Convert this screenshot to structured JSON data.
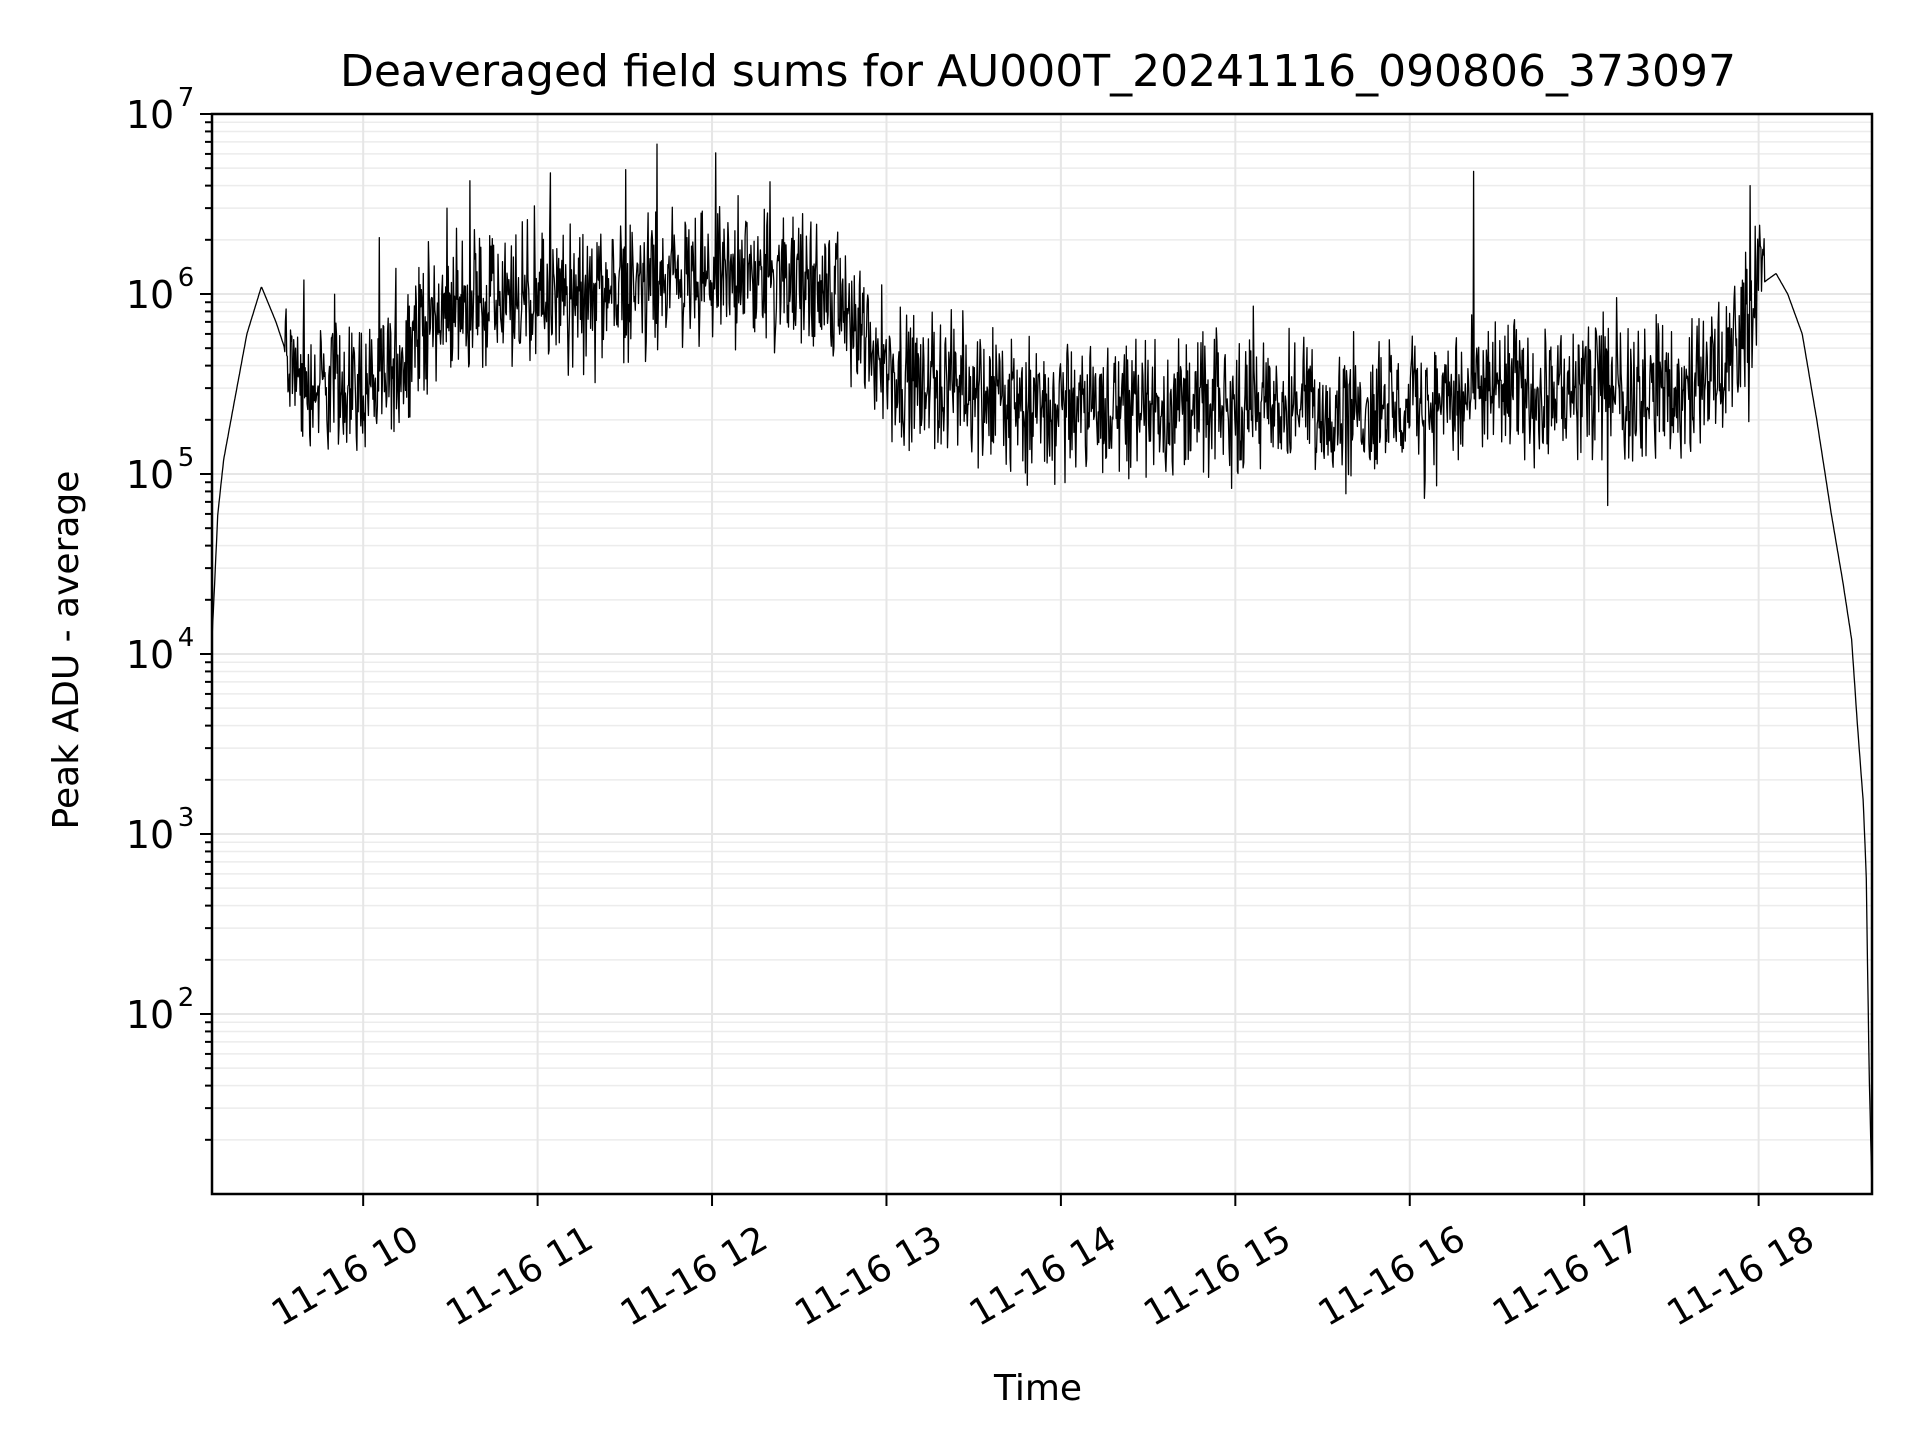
{
  "chart_data": {
    "type": "line",
    "title": "Deaveraged field sums for AU000T_20241116_090806_373097",
    "xlabel": "Time",
    "ylabel": "Peak ADU - average",
    "yscale": "log",
    "ylim": [
      10,
      10000000
    ],
    "xlim": [
      "2024-11-16 09:08",
      "2024-11-16 18:39"
    ],
    "grid": true,
    "line_color": "#000000",
    "x_ticks": [
      {
        "label": "11-16 10",
        "value": "2024-11-16 10:00"
      },
      {
        "label": "11-16 11",
        "value": "2024-11-16 11:00"
      },
      {
        "label": "11-16 12",
        "value": "2024-11-16 12:00"
      },
      {
        "label": "11-16 13",
        "value": "2024-11-16 13:00"
      },
      {
        "label": "11-16 14",
        "value": "2024-11-16 14:00"
      },
      {
        "label": "11-16 15",
        "value": "2024-11-16 15:00"
      },
      {
        "label": "11-16 16",
        "value": "2024-11-16 16:00"
      },
      {
        "label": "11-16 17",
        "value": "2024-11-16 17:00"
      },
      {
        "label": "11-16 18",
        "value": "2024-11-16 18:00"
      }
    ],
    "y_ticks": [
      {
        "base": "10",
        "exp": "2",
        "value": 100
      },
      {
        "base": "10",
        "exp": "3",
        "value": 1000
      },
      {
        "base": "10",
        "exp": "4",
        "value": 10000
      },
      {
        "base": "10",
        "exp": "5",
        "value": 100000
      },
      {
        "base": "10",
        "exp": "6",
        "value": 1000000
      },
      {
        "base": "10",
        "exp": "7",
        "value": 10000000
      }
    ],
    "series": [
      {
        "x": [
          "2024-11-16 09:08",
          "2024-11-16 09:10",
          "2024-11-16 09:12",
          "2024-11-16 09:15",
          "2024-11-16 09:20",
          "2024-11-16 09:25",
          "2024-11-16 09:30",
          "2024-11-16 09:35",
          "2024-11-16 09:40",
          "2024-11-16 09:45",
          "2024-11-16 09:50",
          "2024-11-16 10:00",
          "2024-11-16 10:10",
          "2024-11-16 10:20",
          "2024-11-16 10:30",
          "2024-11-16 10:45",
          "2024-11-16 11:00",
          "2024-11-16 11:15",
          "2024-11-16 11:30",
          "2024-11-16 11:45",
          "2024-11-16 12:00",
          "2024-11-16 12:15",
          "2024-11-16 12:30",
          "2024-11-16 12:45",
          "2024-11-16 13:00",
          "2024-11-16 13:15",
          "2024-11-16 13:30",
          "2024-11-16 13:45",
          "2024-11-16 14:00",
          "2024-11-16 14:15",
          "2024-11-16 14:30",
          "2024-11-16 14:45",
          "2024-11-16 15:00",
          "2024-11-16 15:15",
          "2024-11-16 15:30",
          "2024-11-16 15:45",
          "2024-11-16 16:00",
          "2024-11-16 16:15",
          "2024-11-16 16:30",
          "2024-11-16 16:45",
          "2024-11-16 17:00",
          "2024-11-16 17:15",
          "2024-11-16 17:30",
          "2024-11-16 17:45",
          "2024-11-16 17:55",
          "2024-11-16 18:00",
          "2024-11-16 18:03",
          "2024-11-16 18:06",
          "2024-11-16 18:10",
          "2024-11-16 18:15",
          "2024-11-16 18:20",
          "2024-11-16 18:25",
          "2024-11-16 18:29",
          "2024-11-16 18:32",
          "2024-11-16 18:34",
          "2024-11-16 18:36",
          "2024-11-16 18:37",
          "2024-11-16 18:38",
          "2024-11-16 18:39"
        ],
        "y": [
          12000,
          60000,
          120000,
          220000,
          600000,
          1100000,
          700000,
          400000,
          330000,
          300000,
          310000,
          320000,
          360000,
          700000,
          900000,
          900000,
          950000,
          1000000,
          1100000,
          1100000,
          1200000,
          1250000,
          1200000,
          900000,
          400000,
          320000,
          300000,
          240000,
          230000,
          240000,
          250000,
          240000,
          240000,
          230000,
          230000,
          240000,
          250000,
          260000,
          300000,
          290000,
          280000,
          300000,
          310000,
          330000,
          700000,
          1100000,
          1200000,
          1300000,
          1000000,
          600000,
          200000,
          60000,
          25000,
          12000,
          4000,
          1500,
          600,
          50,
          10
        ]
      }
    ],
    "noise_log10_amplitude": 0.5,
    "spikes": [
      {
        "x": "2024-11-16 11:41",
        "y": 6800000
      },
      {
        "x": "2024-11-16 12:20",
        "y": 4200000
      },
      {
        "x": "2024-11-16 16:22",
        "y": 4800000
      },
      {
        "x": "2024-11-16 17:57",
        "y": 4000000
      }
    ]
  }
}
